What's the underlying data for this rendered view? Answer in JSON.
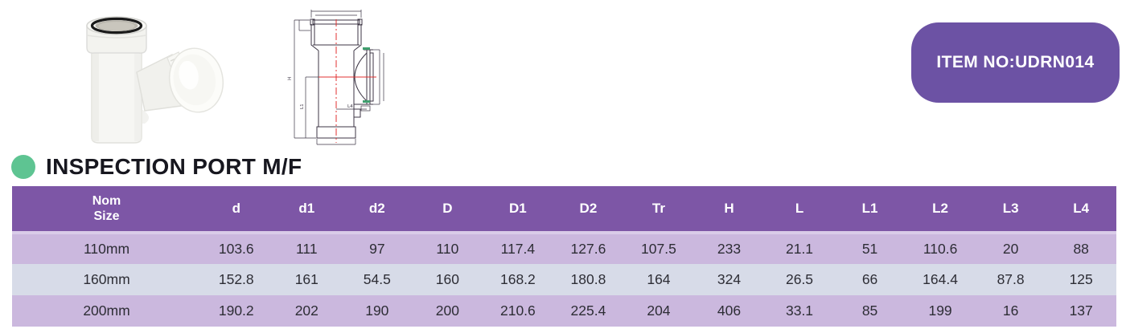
{
  "item_badge": {
    "label": "ITEM NO:UDRN014"
  },
  "section": {
    "title": "INSPECTION PORT M/F"
  },
  "drawing": {
    "labels": {
      "h": "H",
      "l1": "L1",
      "l4": "L4"
    }
  },
  "table": {
    "columns": [
      "Nom\nSize",
      "d",
      "d1",
      "d2",
      "D",
      "D1",
      "D2",
      "Tr",
      "H",
      "L",
      "L1",
      "L2",
      "L3",
      "L4"
    ],
    "rows": [
      [
        "110mm",
        "103.6",
        "111",
        "97",
        "110",
        "117.4",
        "127.6",
        "107.5",
        "233",
        "21.1",
        "51",
        "110.6",
        "20",
        "88"
      ],
      [
        "160mm",
        "152.8",
        "161",
        "54.5",
        "160",
        "168.2",
        "180.8",
        "164",
        "324",
        "26.5",
        "66",
        "164.4",
        "87.8",
        "125"
      ],
      [
        "200mm",
        "190.2",
        "202",
        "190",
        "200",
        "210.6",
        "225.4",
        "204",
        "406",
        "33.1",
        "85",
        "199",
        "16",
        "137"
      ]
    ]
  },
  "colors": {
    "header_bg": "#7d56a6",
    "row_odd": "#cbb8de",
    "row_even": "#d7dbe8",
    "badge_bg": "#6c52a4",
    "accent_green": "#5ec492"
  }
}
